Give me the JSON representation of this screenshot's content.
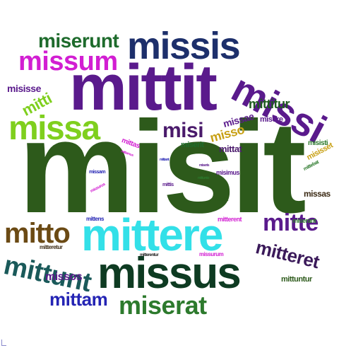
{
  "words": {
    "misit": {
      "text": "misit",
      "color": "#2d5a1b"
    },
    "mittit": {
      "text": "mittit",
      "color": "#5a1a8c"
    },
    "mittere": {
      "text": "mittere",
      "color": "#33e0e8"
    },
    "missus": {
      "text": "missus",
      "color": "#0e3b22"
    },
    "missis": {
      "text": "missis",
      "color": "#1d2f6b"
    },
    "missi": {
      "text": "missi",
      "color": "#5a1a8c"
    },
    "missa": {
      "text": "missa",
      "color": "#7fcf1e"
    },
    "missum": {
      "text": "missum",
      "color": "#d21ed2"
    },
    "miserunt": {
      "text": "miserunt",
      "color": "#1e6b2c"
    },
    "mitto": {
      "text": "mitto",
      "color": "#6b4a14"
    },
    "mittunt": {
      "text": "mittunt",
      "color": "#1a5a5a"
    },
    "miserat": {
      "text": "miserat",
      "color": "#2d7a2d"
    },
    "mittam": {
      "text": "mittam",
      "color": "#2424b4"
    },
    "mitte": {
      "text": "mitte",
      "color": "#5a1a8c"
    },
    "mitteret": {
      "text": "mitteret",
      "color": "#3b1a5a"
    },
    "misi": {
      "text": "misi",
      "color": "#4a1a6b"
    },
    "mitti": {
      "text": "mitti",
      "color": "#7fcf1e"
    },
    "misisse": {
      "text": "misisse",
      "color": "#5a1a8c"
    },
    "mittitur": {
      "text": "mittitur",
      "color": "#1e5a1e"
    },
    "missos": {
      "text": "missos",
      "color": "#5a1a8c"
    },
    "misso": {
      "text": "misso",
      "color": "#c8a014"
    },
    "missae": {
      "text": "missae",
      "color": "#5a1a8c"
    },
    "mittat": {
      "text": "mittat",
      "color": "#4a1a6b"
    },
    "miserit": {
      "text": "miserit",
      "color": "#1e6b2c"
    },
    "misere": {
      "text": "misere",
      "color": "#5a1a8c"
    },
    "misisti": {
      "text": "misisti",
      "color": "#2d7a2d"
    },
    "misisset": {
      "text": "misisset",
      "color": "#c8a014"
    },
    "missas": {
      "text": "missas",
      "color": "#3b2a14"
    },
    "miserant": {
      "text": "miserant",
      "color": "#2d7a2d"
    },
    "mittens": {
      "text": "mittens",
      "color": "#2424b4"
    },
    "mitteretur": {
      "text": "mitteretur",
      "color": "#3b2a14"
    },
    "mitterent": {
      "text": "mitterent",
      "color": "#d21ed2"
    },
    "mittuntur": {
      "text": "mittuntur",
      "color": "#2d5a1b"
    },
    "missurum": {
      "text": "missurum",
      "color": "#d21ed2"
    },
    "mitterentur": {
      "text": "mitterentur",
      "color": "#1a1a1a"
    },
    "misimus": {
      "text": "misimus",
      "color": "#5a1a8c"
    },
    "mittet": {
      "text": "mittet",
      "color": "#2d5a1b"
    },
    "mittas": {
      "text": "mittas",
      "color": "#d21ed2"
    },
    "missam": {
      "text": "missam",
      "color": "#2424b4"
    },
    "mittebat": {
      "text": "mittebat",
      "color": "#2d7a2d"
    },
    "missurus": {
      "text": "missurus",
      "color": "#d21ed2"
    },
    "mittis": {
      "text": "mittis",
      "color": "#5a1a8c"
    },
    "mittamus": {
      "text": "mittamus",
      "color": "#d21ed2"
    },
    "miseris": {
      "text": "miseris",
      "color": "#5a1a8c"
    },
    "mittant": {
      "text": "mittant",
      "color": "#2424b4"
    },
    "mittunto": {
      "text": "mittunto",
      "color": "#2d7a2d"
    }
  }
}
